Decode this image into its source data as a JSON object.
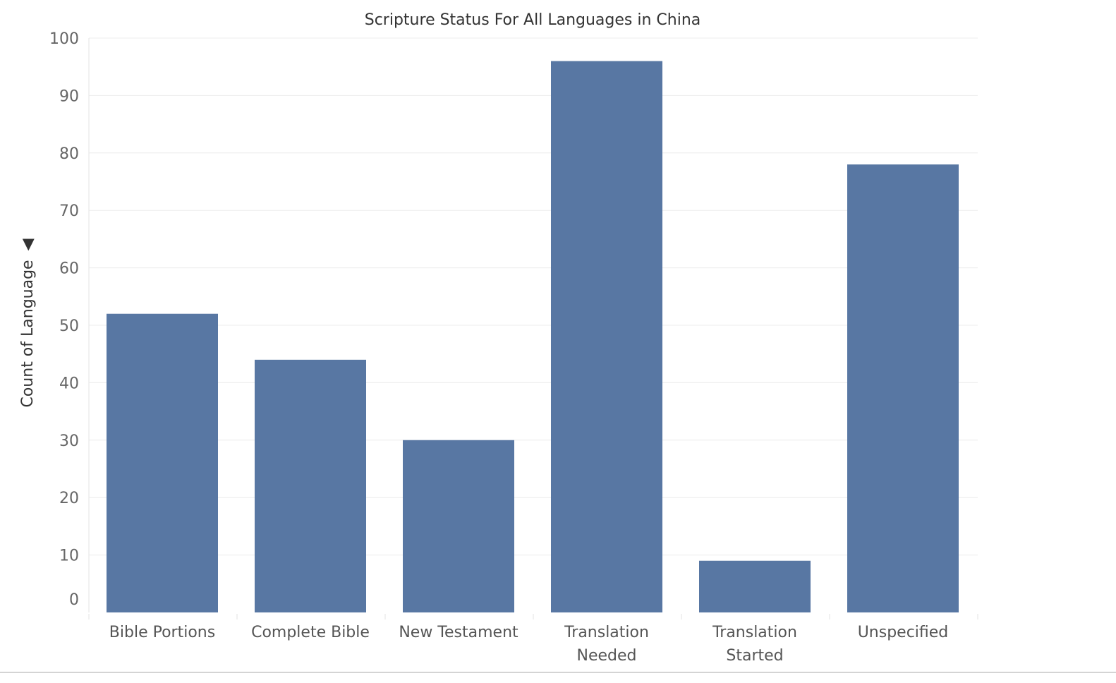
{
  "chart_data": {
    "type": "bar",
    "title": "Scripture Status For All Languages in China",
    "xlabel": "",
    "ylabel": "Count of Language",
    "sort_indicator": "◀",
    "categories": [
      [
        "Bible Portions"
      ],
      [
        "Complete Bible"
      ],
      [
        "New Testament"
      ],
      [
        "Translation",
        "Needed"
      ],
      [
        "Translation",
        "Started"
      ],
      [
        "Unspecified"
      ]
    ],
    "values": [
      52,
      44,
      30,
      96,
      9,
      78
    ],
    "ylim": [
      0,
      100
    ],
    "yticks": [
      0,
      10,
      20,
      30,
      40,
      50,
      60,
      70,
      80,
      90,
      100
    ],
    "grid": true,
    "legend": "none",
    "colors": {
      "bar": "#5877a3",
      "grid": "#ececec",
      "title": "#333333"
    }
  }
}
